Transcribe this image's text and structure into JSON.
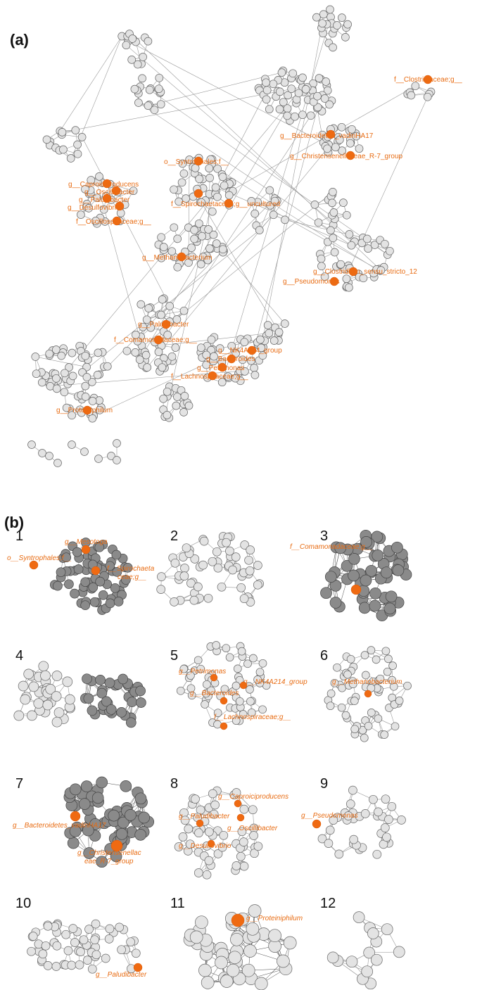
{
  "panel_a": {
    "label": "(a)",
    "highlight_color": "#ef6a12",
    "highlights": [
      "f__Clostridiaceae;g__",
      "g__Bacteroidetes_vadinHA17",
      "g__Christensenellaceae_R-7_group",
      "o__Syntrophales;f__",
      "g__Caproiciproducens",
      "g__Oscillibacter",
      "g__Paludibacter",
      "g__Desulfovibrio",
      "f__Oscillospiraceae;g__",
      "f__Spirochaetaceae;g__uncultured",
      "g__Methanobacterium",
      "g__Clostridium_sensu_stricto_12",
      "g__Pseudomonas",
      "g__Paludibacter",
      "f__Comamonadaceae;g__",
      "g__NK4A214_group",
      "g__Bacteroides",
      "g__Petrimonas",
      "f__Lachnospiraceae;g__",
      "g__Proteiniphilum"
    ]
  },
  "panel_b": {
    "label": "(b)",
    "clusters": [
      {
        "num": "1",
        "labels": [
          "g__Mesotoga",
          "o__Syntrophales;f__",
          "f__Spirochaeta",
          "ceae;g__"
        ]
      },
      {
        "num": "2",
        "labels": []
      },
      {
        "num": "3",
        "labels": [
          "f__Comamonadaceae;g__"
        ]
      },
      {
        "num": "4",
        "labels": []
      },
      {
        "num": "5",
        "labels": [
          "g__Petrimonas",
          "g__NK4A214_group",
          "g__Bacteroides",
          "f__Lachnospiraceae;g__"
        ]
      },
      {
        "num": "6",
        "labels": [
          "g__Methanobacterium"
        ]
      },
      {
        "num": "7",
        "labels": [
          "g__Bacteroidetes_vadinHA17",
          "g__Christensenellac",
          "eae_R-7_group"
        ]
      },
      {
        "num": "8",
        "labels": [
          "g__Caproiciproducens",
          "g__Paludibacter",
          "g__Oscillibacter",
          "g__Desulfovibrio"
        ]
      },
      {
        "num": "9",
        "labels": [
          "g__Pseudomonas"
        ]
      },
      {
        "num": "10",
        "labels": [
          "g__Paludibacter"
        ]
      },
      {
        "num": "11",
        "labels": [
          "g__Proteiniphilum"
        ]
      },
      {
        "num": "12",
        "labels": []
      }
    ]
  }
}
